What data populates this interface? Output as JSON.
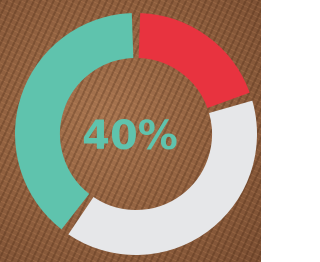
{
  "chart_data": {
    "type": "donut",
    "series": [
      {
        "color": "#e8333f",
        "values": [
          20
        ]
      },
      {
        "color": "#e6e7e9",
        "values": [
          40
        ]
      },
      {
        "color": "#5fc3ad",
        "values": [
          40
        ],
        "value_labels": [
          "40%"
        ]
      }
    ]
  }
}
